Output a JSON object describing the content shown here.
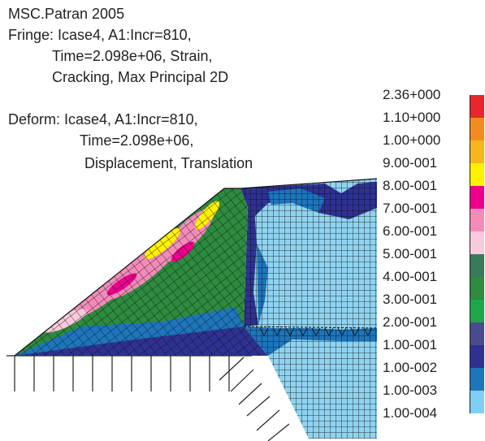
{
  "header": {
    "app_title": "MSC.Patran 2005",
    "fringe_line1": "Fringe: Icase4, A1:Incr=810,",
    "fringe_line2": "Time=2.098e+06, Strain,",
    "fringe_line3": "Cracking, Max Principal 2D",
    "deform_line1": "Deform: Icase4, A1:Incr=810,",
    "deform_line2": "Time=2.098e+06,",
    "deform_line3": "Displacement, Translation"
  },
  "legend": {
    "labels": [
      "2.36+000",
      "1.10+000",
      "1.00+000",
      "9.00-001",
      "8.00-001",
      "7.00-001",
      "6.00-001",
      "5.00-001",
      "4.00-001",
      "3.00-001",
      "2.00-001",
      "1.00-001",
      "1.00-002",
      "1.00-003",
      "1.00-004"
    ],
    "colors": [
      "#e8262b",
      "#f28c1e",
      "#f6b71c",
      "#fff200",
      "#ec008c",
      "#f38bb9",
      "#f9c9dd",
      "#3a7a5b",
      "#2e8b3f",
      "#1fa64a",
      "#4b4a8f",
      "#2e3192",
      "#1d75bc",
      "#7fcff4"
    ]
  },
  "colors": {
    "mesh_light": "#8fd3f0",
    "mesh_blue": "#2e3192",
    "mesh_mid": "#1d75bc",
    "mesh_green": "#2e8b3f",
    "mesh_pink": "#f38bb9",
    "mesh_yellow": "#fff200",
    "mesh_line": "#111111"
  }
}
